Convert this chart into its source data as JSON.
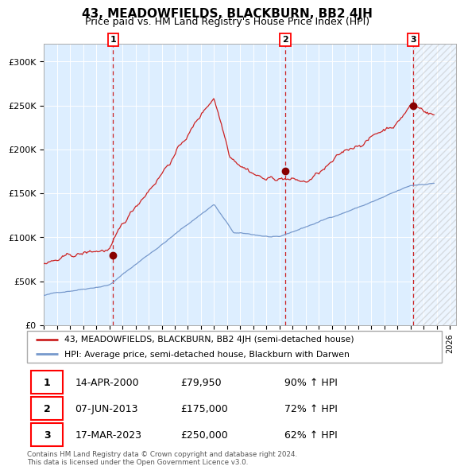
{
  "title": "43, MEADOWFIELDS, BLACKBURN, BB2 4JH",
  "subtitle": "Price paid vs. HM Land Registry's House Price Index (HPI)",
  "xlim_start": 1995.0,
  "xlim_end": 2026.5,
  "ylim": [
    0,
    320000
  ],
  "yticks": [
    0,
    50000,
    100000,
    150000,
    200000,
    250000,
    300000
  ],
  "ytick_labels": [
    "£0",
    "£50K",
    "£100K",
    "£150K",
    "£200K",
    "£250K",
    "£300K"
  ],
  "background_color": "#ffffff",
  "plot_bg_color": "#ddeeff",
  "red_line_color": "#cc2222",
  "blue_line_color": "#7799cc",
  "sale_dot_color": "#880000",
  "dashed_line_color": "#cc2222",
  "transactions": [
    {
      "number": 1,
      "date": 2000.28,
      "price": 79950,
      "label": "1",
      "date_str": "14-APR-2000",
      "price_str": "£79,950",
      "pct": "90% ↑ HPI"
    },
    {
      "number": 2,
      "date": 2013.43,
      "price": 175000,
      "label": "2",
      "date_str": "07-JUN-2013",
      "price_str": "£175,000",
      "pct": "72% ↑ HPI"
    },
    {
      "number": 3,
      "date": 2023.21,
      "price": 250000,
      "label": "3",
      "date_str": "17-MAR-2023",
      "price_str": "£250,000",
      "pct": "62% ↑ HPI"
    }
  ],
  "legend_red_label": "43, MEADOWFIELDS, BLACKBURN, BB2 4JH (semi-detached house)",
  "legend_blue_label": "HPI: Average price, semi-detached house, Blackburn with Darwen",
  "footer": "Contains HM Land Registry data © Crown copyright and database right 2024.\nThis data is licensed under the Open Government Licence v3.0.",
  "grid_color": "#ffffff",
  "title_fontsize": 11,
  "subtitle_fontsize": 9,
  "tick_fontsize": 8,
  "hatch_start": 2023.21,
  "hatch_end": 2026.5
}
